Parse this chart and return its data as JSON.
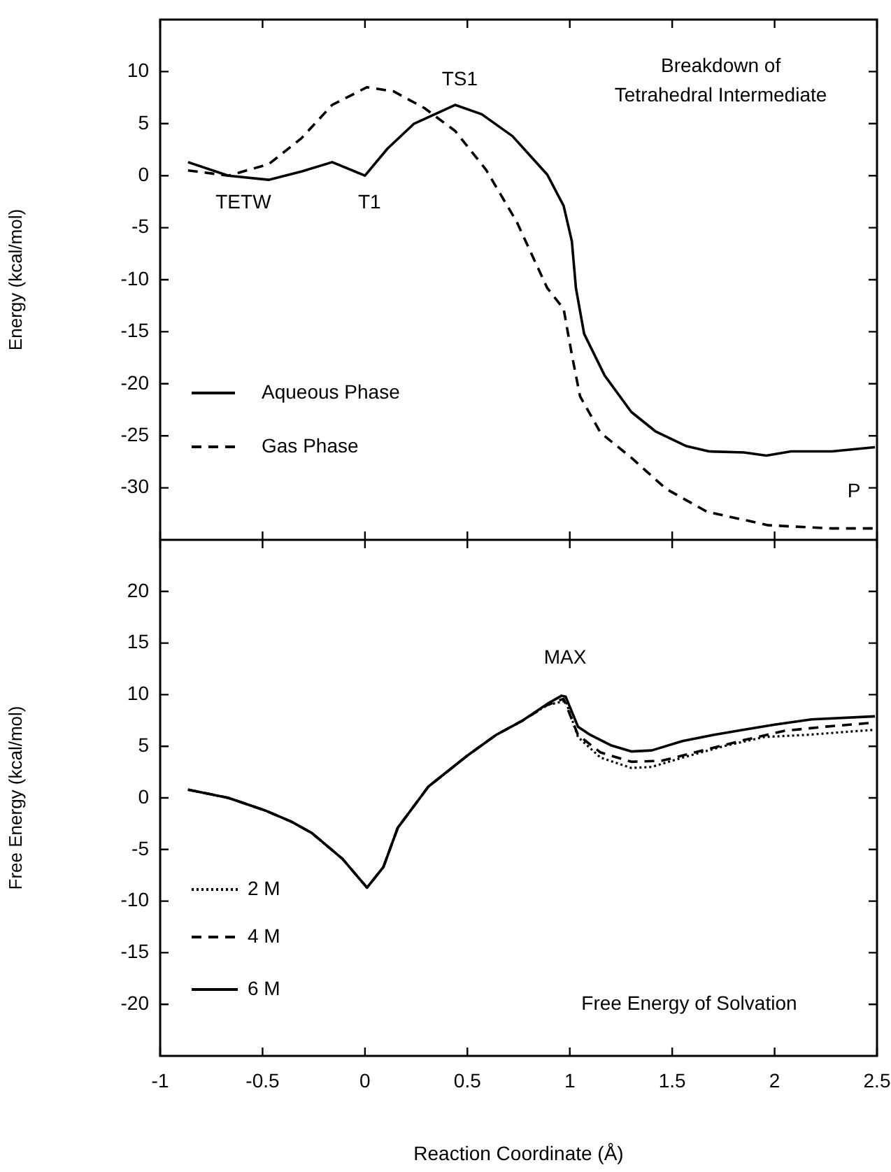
{
  "chart_data": [
    {
      "type": "line",
      "ylabel": "Energy (kcal/mol)",
      "xlim": [
        -1,
        2.5
      ],
      "xticks": [
        -1,
        -0.5,
        0,
        0.5,
        1,
        1.5,
        2,
        2.5
      ],
      "ylim": [
        -35,
        15
      ],
      "yticks": [
        -30,
        -25,
        -20,
        -15,
        -10,
        -5,
        0,
        5,
        10
      ],
      "tick_labels": "y",
      "grid": false,
      "legend": "bottom left",
      "marker": "none",
      "annotations": [
        "Breakdown of\nTetrahedral Intermediate",
        "TETW",
        "T1",
        "TS1",
        "P"
      ],
      "series": [
        {
          "name": "Aqueous Phase",
          "color": "#000000",
          "line_style": "solid",
          "x": [
            -0.864,
            -0.667,
            -0.47,
            -0.31,
            -0.16,
            0,
            0.11,
            0.24,
            0.44,
            0.57,
            0.72,
            0.89,
            0.97,
            1.01,
            1.03,
            1.07,
            1.17,
            1.3,
            1.42,
            1.57,
            1.68,
            1.85,
            1.96,
            2.08,
            2.28,
            2.49
          ],
          "values": [
            1.3,
            0,
            -0.4,
            0.4,
            1.3,
            0,
            2.6,
            5,
            6.8,
            5.9,
            3.8,
            0.1,
            -2.9,
            -6.3,
            -10.8,
            -15.2,
            -19.2,
            -22.7,
            -24.6,
            -26,
            -26.5,
            -26.6,
            -26.9,
            -26.5,
            -26.5,
            -26.1
          ]
        },
        {
          "name": "Gas Phase",
          "color": "#000000",
          "line_style": "dashed",
          "x": [
            -0.864,
            -0.667,
            -0.47,
            -0.31,
            -0.16,
            0.01,
            0.14,
            0.29,
            0.44,
            0.59,
            0.74,
            0.89,
            0.97,
            1.01,
            1.05,
            1.15,
            1.3,
            1.47,
            1.67,
            1.97,
            2.28,
            2.49
          ],
          "values": [
            0.5,
            0,
            1.1,
            3.6,
            6.8,
            8.5,
            8.1,
            6.5,
            4.3,
            0.6,
            -4.4,
            -10.8,
            -12.8,
            -17.2,
            -21.2,
            -24.7,
            -27.1,
            -30.1,
            -32.3,
            -33.6,
            -33.9,
            -33.9
          ]
        }
      ]
    },
    {
      "type": "line",
      "xlabel": "Reaction Coordinate (Å)",
      "ylabel": "Free Energy (kcal/mol)",
      "xlim": [
        -1,
        2.5
      ],
      "xticks": [
        -1,
        -0.5,
        0,
        0.5,
        1,
        1.5,
        2,
        2.5
      ],
      "ylim": [
        -25,
        25
      ],
      "yticks": [
        -20,
        -15,
        -10,
        -5,
        0,
        5,
        10,
        15,
        20
      ],
      "grid": false,
      "legend": "bottom left",
      "marker": "none",
      "annotations": [
        "Free Energy of Solvation",
        "MAX"
      ],
      "series": [
        {
          "name": "2 M",
          "color": "#000000",
          "line_style": "dotted",
          "x": [
            -0.864,
            -0.667,
            -0.49,
            -0.36,
            -0.26,
            -0.11,
            0.01,
            0.09,
            0.16,
            0.31,
            0.5,
            0.64,
            0.77,
            0.89,
            0.98,
            1.04,
            1.15,
            1.3,
            1.4,
            1.55,
            1.75,
            1.95,
            2.15,
            2.49
          ],
          "values": [
            0.8,
            0,
            -1.2,
            -2.3,
            -3.4,
            -5.9,
            -8.7,
            -6.7,
            -2.9,
            1.1,
            4.1,
            6.1,
            7.5,
            9,
            9.4,
            5.9,
            3.9,
            2.9,
            3,
            3.9,
            5,
            5.9,
            6.1,
            6.6
          ]
        },
        {
          "name": "4 M",
          "color": "#000000",
          "line_style": "dashed",
          "x": [
            -0.864,
            -0.667,
            -0.49,
            -0.36,
            -0.26,
            -0.11,
            0.01,
            0.09,
            0.16,
            0.31,
            0.5,
            0.64,
            0.77,
            0.89,
            0.97,
            1.04,
            1.15,
            1.3,
            1.45,
            1.65,
            1.85,
            2.05,
            2.25,
            2.49
          ],
          "values": [
            0.8,
            0,
            -1.2,
            -2.3,
            -3.4,
            -5.9,
            -8.7,
            -6.7,
            -2.9,
            1.1,
            4.1,
            6.1,
            7.5,
            9,
            9.6,
            6.1,
            4.4,
            3.5,
            3.6,
            4.6,
            5.6,
            6.5,
            6.9,
            7.3
          ]
        },
        {
          "name": "6 M",
          "color": "#000000",
          "line_style": "solid",
          "x": [
            -0.864,
            -0.667,
            -0.49,
            -0.36,
            -0.26,
            -0.11,
            0.01,
            0.09,
            0.16,
            0.31,
            0.5,
            0.64,
            0.77,
            0.89,
            0.96,
            0.98,
            1.04,
            1.1,
            1.2,
            1.3,
            1.4,
            1.55,
            1.7,
            1.85,
            2,
            2.18,
            2.49
          ],
          "values": [
            0.8,
            0,
            -1.2,
            -2.3,
            -3.4,
            -5.9,
            -8.7,
            -6.7,
            -2.9,
            1.1,
            4.1,
            6.1,
            7.5,
            9.1,
            9.9,
            9.8,
            6.9,
            6.1,
            5.1,
            4.5,
            4.6,
            5.5,
            6.1,
            6.6,
            7.1,
            7.6,
            7.9
          ]
        }
      ]
    }
  ]
}
